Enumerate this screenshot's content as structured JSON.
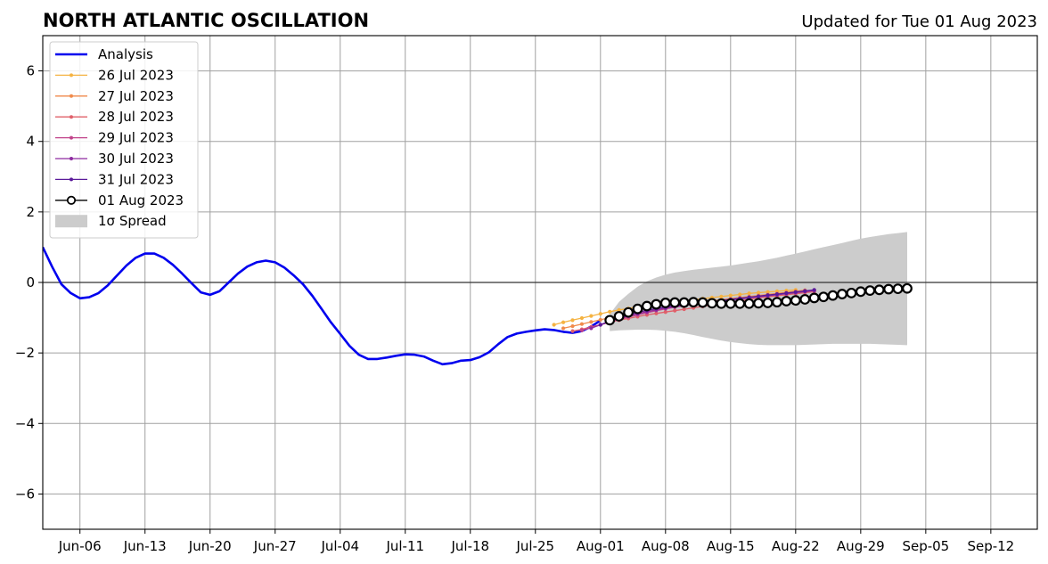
{
  "title": "NORTH ATLANTIC OSCILLATION",
  "updated": "Updated for Tue 01 Aug 2023",
  "colors": {
    "analysis": "#0000ee",
    "spread": "#cccccc",
    "grid": "#a0a0a0",
    "forecast_2023-07-26": "#f5b342",
    "forecast_2023-07-27": "#f08a4b",
    "forecast_2023-07-28": "#e0606a",
    "forecast_2023-07-29": "#c1438a",
    "forecast_2023-07-30": "#8e2ba0",
    "forecast_2023-07-31": "#5a1a9a",
    "forecast_2023-08-01": "#000000"
  },
  "legend": {
    "placement": "top-left",
    "entries": [
      {
        "label": "Analysis",
        "style": "line",
        "color_key": "analysis"
      },
      {
        "label": "26 Jul 2023",
        "style": "line-dot",
        "color_key": "forecast_2023-07-26"
      },
      {
        "label": "27 Jul 2023",
        "style": "line-dot",
        "color_key": "forecast_2023-07-27"
      },
      {
        "label": "28 Jul 2023",
        "style": "line-dot",
        "color_key": "forecast_2023-07-28"
      },
      {
        "label": "29 Jul 2023",
        "style": "line-dot",
        "color_key": "forecast_2023-07-29"
      },
      {
        "label": "30 Jul 2023",
        "style": "line-dot",
        "color_key": "forecast_2023-07-30"
      },
      {
        "label": "31 Jul 2023",
        "style": "line-dot",
        "color_key": "forecast_2023-07-31"
      },
      {
        "label": "01 Aug 2023",
        "style": "line-circle",
        "color_key": "forecast_2023-08-01"
      },
      {
        "label": "1σ Spread",
        "style": "patch",
        "color_key": "spread"
      }
    ]
  },
  "chart_data": {
    "type": "line",
    "xlim": [
      "2023-06-02",
      "2023-09-17"
    ],
    "ylim": [
      -7,
      7
    ],
    "grid": true,
    "x_ticks": [
      {
        "date": "2023-06-06",
        "label": "Jun-06"
      },
      {
        "date": "2023-06-13",
        "label": "Jun-13"
      },
      {
        "date": "2023-06-20",
        "label": "Jun-20"
      },
      {
        "date": "2023-06-27",
        "label": "Jun-27"
      },
      {
        "date": "2023-07-04",
        "label": "Jul-04"
      },
      {
        "date": "2023-07-11",
        "label": "Jul-11"
      },
      {
        "date": "2023-07-18",
        "label": "Jul-18"
      },
      {
        "date": "2023-07-25",
        "label": "Jul-25"
      },
      {
        "date": "2023-08-01",
        "label": "Aug-01"
      },
      {
        "date": "2023-08-08",
        "label": "Aug-08"
      },
      {
        "date": "2023-08-15",
        "label": "Aug-15"
      },
      {
        "date": "2023-08-22",
        "label": "Aug-22"
      },
      {
        "date": "2023-08-29",
        "label": "Aug-29"
      },
      {
        "date": "2023-09-05",
        "label": "Sep-05"
      },
      {
        "date": "2023-09-12",
        "label": "Sep-12"
      }
    ],
    "y_ticks": [
      {
        "value": 6,
        "label": "6"
      },
      {
        "value": 4,
        "label": "4"
      },
      {
        "value": 2,
        "label": "2"
      },
      {
        "value": 0,
        "label": "0"
      },
      {
        "value": -2,
        "label": "−2"
      },
      {
        "value": -4,
        "label": "−4"
      },
      {
        "value": -6,
        "label": "−6"
      }
    ],
    "analysis": {
      "name": "Analysis",
      "start": "2023-06-02",
      "values": [
        1.0,
        0.45,
        -0.05,
        -0.3,
        -0.45,
        -0.42,
        -0.3,
        -0.08,
        0.2,
        0.48,
        0.7,
        0.82,
        0.82,
        0.7,
        0.5,
        0.25,
        -0.02,
        -0.28,
        -0.35,
        -0.25,
        0.0,
        0.25,
        0.45,
        0.57,
        0.62,
        0.57,
        0.42,
        0.2,
        -0.05,
        -0.38,
        -0.75,
        -1.13,
        -1.46,
        -1.8,
        -2.05,
        -2.17,
        -2.17,
        -2.13,
        -2.08,
        -2.04,
        -2.05,
        -2.1,
        -2.22,
        -2.32,
        -2.29,
        -2.22,
        -2.2,
        -2.12,
        -1.98,
        -1.75,
        -1.55,
        -1.45,
        -1.4,
        -1.36,
        -1.33,
        -1.35,
        -1.4,
        -1.43,
        -1.38,
        -1.25,
        -1.08
      ]
    },
    "forecasts": [
      {
        "name": "26 Jul 2023",
        "start": "2023-07-27",
        "values": [
          -1.2,
          -1.13,
          -1.07,
          -1.01,
          -0.95,
          -0.89,
          -0.83,
          -0.78,
          -0.74,
          -0.69,
          -0.65,
          -0.61,
          -0.58,
          -0.55,
          -0.52,
          -0.49,
          -0.46,
          -0.43,
          -0.4,
          -0.37,
          -0.34,
          -0.31,
          -0.29,
          -0.27,
          -0.25,
          -0.23,
          -0.21
        ]
      },
      {
        "name": "27 Jul 2023",
        "start": "2023-07-28",
        "values": [
          -1.3,
          -1.24,
          -1.18,
          -1.12,
          -1.06,
          -1.0,
          -0.95,
          -0.9,
          -0.85,
          -0.8,
          -0.76,
          -0.72,
          -0.68,
          -0.64,
          -0.6,
          -0.56,
          -0.52,
          -0.49,
          -0.46,
          -0.43,
          -0.4,
          -0.37,
          -0.34,
          -0.31,
          -0.28,
          -0.25,
          -0.22
        ]
      },
      {
        "name": "28 Jul 2023",
        "start": "2023-07-29",
        "values": [
          -1.38,
          -1.33,
          -1.26,
          -1.2,
          -1.13,
          -1.07,
          -1.02,
          -0.97,
          -0.92,
          -0.88,
          -0.84,
          -0.8,
          -0.76,
          -0.72,
          -0.68,
          -0.64,
          -0.6,
          -0.56,
          -0.52,
          -0.48,
          -0.44,
          -0.41,
          -0.38,
          -0.35,
          -0.32,
          -0.29,
          -0.26
        ]
      },
      {
        "name": "29 Jul 2023",
        "start": "2023-07-30",
        "values": [
          -1.36,
          -1.28,
          -1.2,
          -1.12,
          -1.05,
          -0.98,
          -0.92,
          -0.86,
          -0.8,
          -0.75,
          -0.7,
          -0.66,
          -0.62,
          -0.58,
          -0.55,
          -0.52,
          -0.49,
          -0.46,
          -0.43,
          -0.4,
          -0.37,
          -0.34,
          -0.31,
          -0.28,
          -0.25,
          -0.22
        ]
      },
      {
        "name": "30 Jul 2023",
        "start": "2023-07-31",
        "values": [
          -1.3,
          -1.2,
          -1.1,
          -1.02,
          -0.95,
          -0.89,
          -0.83,
          -0.78,
          -0.73,
          -0.69,
          -0.65,
          -0.62,
          -0.59,
          -0.56,
          -0.53,
          -0.5,
          -0.47,
          -0.44,
          -0.41,
          -0.38,
          -0.35,
          -0.32,
          -0.29,
          -0.26,
          -0.23
        ]
      },
      {
        "name": "31 Jul 2023",
        "start": "2023-08-01",
        "values": [
          -1.2,
          -1.1,
          -1.0,
          -0.92,
          -0.85,
          -0.79,
          -0.74,
          -0.7,
          -0.66,
          -0.63,
          -0.6,
          -0.57,
          -0.54,
          -0.51,
          -0.48,
          -0.45,
          -0.42,
          -0.39,
          -0.36,
          -0.33,
          -0.3,
          -0.27,
          -0.24,
          -0.21
        ]
      },
      {
        "name": "01 Aug 2023",
        "start": "2023-08-02",
        "values": [
          -1.07,
          -0.96,
          -0.85,
          -0.75,
          -0.67,
          -0.62,
          -0.58,
          -0.57,
          -0.57,
          -0.56,
          -0.57,
          -0.59,
          -0.6,
          -0.6,
          -0.6,
          -0.6,
          -0.59,
          -0.58,
          -0.56,
          -0.53,
          -0.51,
          -0.48,
          -0.44,
          -0.41,
          -0.37,
          -0.33,
          -0.3,
          -0.26,
          -0.23,
          -0.21,
          -0.19,
          -0.18,
          -0.17
        ]
      }
    ],
    "spread": {
      "name": "1σ Spread",
      "start": "2023-08-02",
      "upper": [
        -0.9,
        -0.55,
        -0.32,
        -0.12,
        0.03,
        0.14,
        0.22,
        0.28,
        0.32,
        0.36,
        0.39,
        0.42,
        0.45,
        0.48,
        0.52,
        0.56,
        0.6,
        0.65,
        0.7,
        0.76,
        0.82,
        0.88,
        0.94,
        1.0,
        1.06,
        1.12,
        1.18,
        1.24,
        1.29,
        1.33,
        1.37,
        1.4,
        1.43
      ],
      "lower": [
        -1.38,
        -1.36,
        -1.35,
        -1.34,
        -1.34,
        -1.35,
        -1.37,
        -1.4,
        -1.44,
        -1.49,
        -1.55,
        -1.6,
        -1.65,
        -1.69,
        -1.72,
        -1.75,
        -1.77,
        -1.78,
        -1.78,
        -1.78,
        -1.78,
        -1.77,
        -1.76,
        -1.75,
        -1.74,
        -1.74,
        -1.74,
        -1.74,
        -1.74,
        -1.75,
        -1.76,
        -1.77,
        -1.78
      ]
    }
  }
}
